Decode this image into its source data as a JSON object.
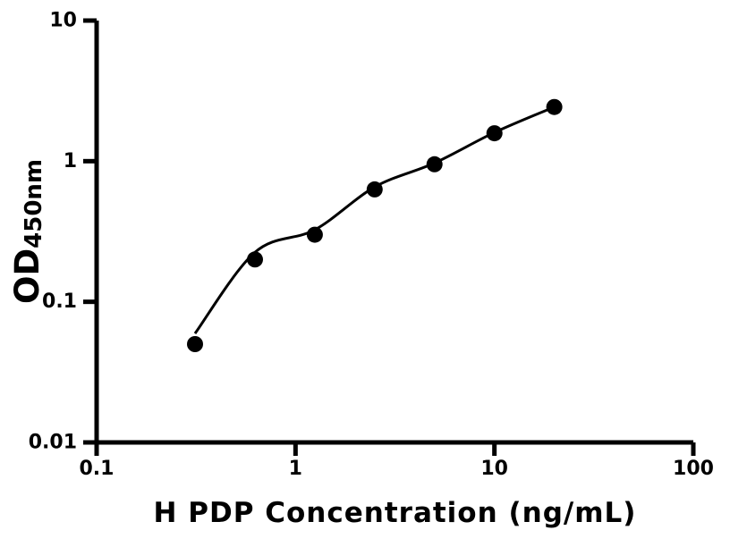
{
  "page": {
    "background_color": "#ffffff",
    "foreground_color": "#000000"
  },
  "chart_data": {
    "type": "scatter",
    "title": "",
    "xlabel": "H PDP Concentration (ng/mL)",
    "ylabel_main": "OD",
    "ylabel_sub": "450nm",
    "x_scale": "log",
    "y_scale": "log",
    "xlim": [
      0.1,
      100
    ],
    "ylim": [
      0.01,
      10
    ],
    "grid": false,
    "legend": false,
    "x_ticks": [
      {
        "value": 0.1,
        "label": "0.1"
      },
      {
        "value": 1,
        "label": "1"
      },
      {
        "value": 10,
        "label": "10"
      },
      {
        "value": 100,
        "label": "100"
      }
    ],
    "y_ticks": [
      {
        "value": 0.01,
        "label": "0.01"
      },
      {
        "value": 0.1,
        "label": "0.1"
      },
      {
        "value": 1,
        "label": "1"
      },
      {
        "value": 10,
        "label": "10"
      }
    ],
    "series": [
      {
        "marker": "circle",
        "marker_color": "#000000",
        "points": [
          {
            "x": 0.3125,
            "y": 0.05
          },
          {
            "x": 0.625,
            "y": 0.2
          },
          {
            "x": 1.25,
            "y": 0.3
          },
          {
            "x": 2.5,
            "y": 0.63
          },
          {
            "x": 5,
            "y": 0.95
          },
          {
            "x": 10,
            "y": 1.58
          },
          {
            "x": 20,
            "y": 2.43
          }
        ]
      }
    ],
    "fit_curve": {
      "style": "smooth",
      "color": "#000000",
      "anchors": [
        {
          "x": 0.3125,
          "y": 0.0595
        },
        {
          "x": 0.625,
          "y": 0.225
        },
        {
          "x": 1.25,
          "y": 0.325
        },
        {
          "x": 2.5,
          "y": 0.655
        },
        {
          "x": 5,
          "y": 0.97
        },
        {
          "x": 10,
          "y": 1.6
        },
        {
          "x": 20,
          "y": 2.43
        }
      ]
    },
    "colors": {
      "axis": "#000000",
      "points": "#000000",
      "curve": "#000000",
      "background": "#ffffff"
    }
  }
}
